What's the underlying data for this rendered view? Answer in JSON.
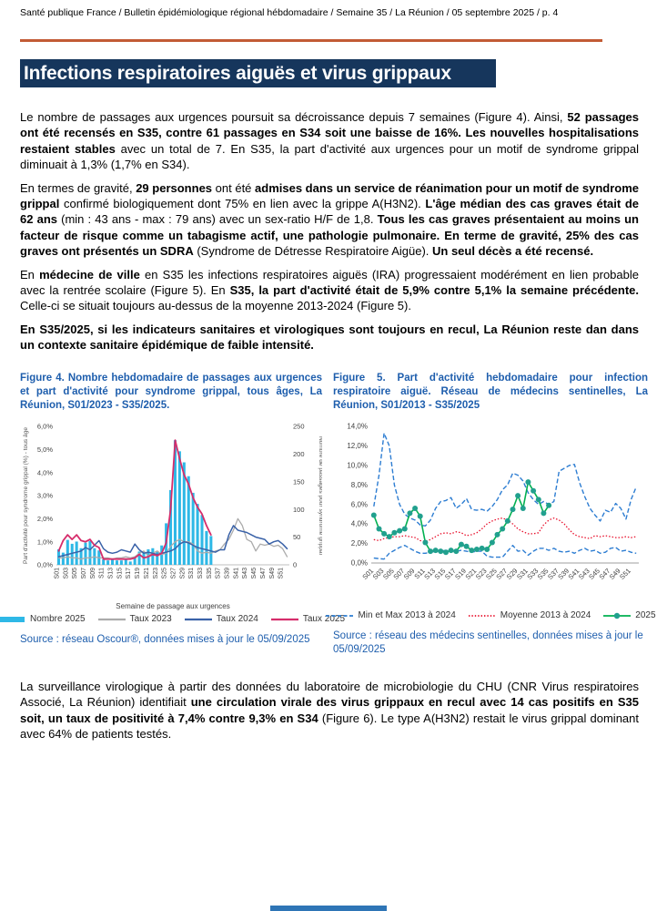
{
  "header": {
    "breadcrumb": "Santé publique France / Bulletin épidémiologique régional hébdomadaire / Semaine 35 / La Réunion / 05 septembre 2025 / p. 4"
  },
  "title": "Infections respiratoires aiguës et virus grippaux",
  "colors": {
    "banner_navy": "#16365C",
    "rule_orange": "#C25B35",
    "caption_blue": "#1E5EAD",
    "footer_bar_blue": "#2E75B6"
  },
  "paragraphs": [
    {
      "segments": [
        {
          "t": "Le nombre de passages aux urgences poursuit sa décroissance depuis 7 semaines (Figure 4). Ainsi, ",
          "b": false
        },
        {
          "t": "52 passages ont été recensés en S35, contre 61 passages en S34 soit une baisse de 16%.  Les nouvelles hospitalisations restaient stables",
          "b": true
        },
        {
          "t": " avec un total de 7. En S35, la part d'activité aux urgences pour un motif de syndrome grippal diminuait à 1,3% (1,7% en S34).",
          "b": false
        }
      ]
    },
    {
      "segments": [
        {
          "t": "En termes de gravité, ",
          "b": false
        },
        {
          "t": "29 personnes",
          "b": true
        },
        {
          "t": " ont été ",
          "b": false
        },
        {
          "t": "admises dans un service de réanimation pour un motif de syndrome grippal",
          "b": true
        },
        {
          "t": " confirmé biologiquement dont 75% en lien avec la grippe A(H3N2). ",
          "b": false
        },
        {
          "t": "L'âge médian des cas graves était de 62 ans",
          "b": true
        },
        {
          "t": " (min :  43 ans - max : 79 ans) avec un sex-ratio H/F de 1,8. ",
          "b": false
        },
        {
          "t": "Tous les cas graves présentaient au moins un facteur de risque comme un tabagisme actif, une pathologie pulmonaire. En terme de gravité, 25% des cas graves ont présentés un SDRA",
          "b": true
        },
        {
          "t": " (Syndrome de Détresse Respiratoire Aigüe). ",
          "b": false
        },
        {
          "t": "Un seul décès a été recensé.",
          "b": true
        }
      ]
    },
    {
      "segments": [
        {
          "t": "En ",
          "b": false
        },
        {
          "t": "médecine de ville",
          "b": true
        },
        {
          "t": " en S35 les infections respiratoires aiguës (IRA) progressaient modérément en lien probable avec la rentrée scolaire (Figure 5). En ",
          "b": false
        },
        {
          "t": "S35, la part d'activité était de 5,9% contre 5,1% la semaine précédente.",
          "b": true
        },
        {
          "t": " Celle-ci se situait toujours au-dessus de la moyenne 2013-2024 (Figure 5).",
          "b": false
        }
      ]
    },
    {
      "segments": [
        {
          "t": "En S35/2025, si les indicateurs sanitaires et virologiques sont toujours en recul, La Réunion reste dan dans un contexte sanitaire épidémique de faible intensité.",
          "b": true
        }
      ]
    }
  ],
  "figure4": {
    "caption": "Figure 4. Nombre hebdomadaire de passages aux urgences et part d'activité pour syndrome grippal, tous âges, La Réunion, S01/2023 - S35/2025.",
    "source": "Source : réseau Oscour®,  données mises à jour le 05/09/2025"
  },
  "figure5": {
    "caption": "Figure 5. Part d'activité hebdomadaire pour infection respiratoire aiguë. Réseau de médecins sentinelles, La Réunion, S01/2013 - S35/2025",
    "source": "Source : réseau des médecins sentinelles, données mises à jour le 05/09/2025"
  },
  "closing": {
    "segments": [
      {
        "t": "La surveillance virologique à partir des données du laboratoire de microbiologie du CHU (CNR Virus respiratoires Associé, La Réunion) identifiait ",
        "b": false
      },
      {
        "t": "une circulation virale des virus grippaux en recul avec 14 cas positifs en S35 soit, un taux de positivité à 7,4% contre 9,3% en S34",
        "b": true
      },
      {
        "t": " (Figure 6). Le type A(H3N2) restait le virus grippal dominant avec 64% de patients testés.",
        "b": false
      }
    ]
  },
  "chart_data": [
    {
      "type": "bar",
      "title": "Nombre hebdomadaire de passages aux urgences et part d'activité pour syndrome grippal, tous âges, La Réunion, S01/2023 - S35/2025",
      "weeks": 52,
      "x_label": "Semaine de passage aux urgences",
      "y_left_label": "Part d'activité pour syndrome grippal (%) - tous âge",
      "y_right_label": "Nombre de passages pour syndrome grippal",
      "y_left_range": [
        0,
        6
      ],
      "y_right_range": [
        0,
        250
      ],
      "y_left_ticks": [
        "0,0%",
        "1,0%",
        "2,0%",
        "3,0%",
        "4,0%",
        "5,0%",
        "6,0%"
      ],
      "y_right_ticks": [
        "0",
        "50",
        "100",
        "150",
        "200",
        "250"
      ],
      "x_ticks": [
        "S01",
        "S03",
        "S05",
        "S07",
        "S09",
        "S11",
        "S13",
        "S15",
        "S17",
        "S19",
        "S21",
        "S23",
        "S25",
        "S27",
        "S29",
        "S31",
        "S33",
        "S35",
        "S37",
        "S39",
        "S41",
        "S43",
        "S45",
        "S47",
        "S49",
        "S51"
      ],
      "legend": [
        {
          "label": "Nombre 2025",
          "color": "#2EB8E6",
          "type": "bar"
        },
        {
          "label": "Taux 2023",
          "color": "#ABABAB",
          "type": "line"
        },
        {
          "label": "Taux 2024",
          "color": "#3A62A8",
          "type": "line"
        },
        {
          "label": "Taux 2025",
          "color": "#D62D6B",
          "type": "line"
        }
      ],
      "series": [
        {
          "name": "Nombre 2025",
          "axis": "right",
          "kind": "bar",
          "color": "#2EB8E6",
          "values": [
            28,
            22,
            45,
            38,
            42,
            30,
            40,
            43,
            30,
            26,
            10,
            8,
            10,
            8,
            8,
            10,
            6,
            12,
            24,
            24,
            28,
            30,
            24,
            35,
            75,
            135,
            225,
            205,
            185,
            160,
            130,
            110,
            90,
            61,
            52
          ]
        },
        {
          "name": "Taux 2023",
          "axis": "left",
          "kind": "line",
          "color": "#ABABAB",
          "width": 1.3,
          "values": [
            0.3,
            0.3,
            0.35,
            0.3,
            0.3,
            0.25,
            0.3,
            0.3,
            0.35,
            0.3,
            0.3,
            0.3,
            0.25,
            0.3,
            0.3,
            0.35,
            0.3,
            0.35,
            0.5,
            0.6,
            0.4,
            0.5,
            0.6,
            0.45,
            0.5,
            0.8,
            1.0,
            1.1,
            1.0,
            1.0,
            0.9,
            0.6,
            0.5,
            0.55,
            0.5,
            0.6,
            0.65,
            0.9,
            1.1,
            1.5,
            2.0,
            1.7,
            1.1,
            1.0,
            0.6,
            0.9,
            0.85,
            0.9,
            0.8,
            0.85,
            0.7,
            0.35
          ]
        },
        {
          "name": "Taux 2024",
          "axis": "left",
          "kind": "line",
          "color": "#3A62A8",
          "width": 1.5,
          "values": [
            0.35,
            0.4,
            0.45,
            0.5,
            0.55,
            0.6,
            0.75,
            0.65,
            0.85,
            1.05,
            0.7,
            0.55,
            0.5,
            0.55,
            0.65,
            0.6,
            0.55,
            0.9,
            0.65,
            0.5,
            0.55,
            0.5,
            0.45,
            0.5,
            0.55,
            0.6,
            0.7,
            0.9,
            1.0,
            0.95,
            0.85,
            0.75,
            0.7,
            0.65,
            0.6,
            0.55,
            0.65,
            0.65,
            1.3,
            1.7,
            1.5,
            1.45,
            1.4,
            1.3,
            1.2,
            1.15,
            1.1,
            0.9,
            1.0,
            1.05,
            0.9,
            0.7
          ]
        },
        {
          "name": "Taux 2025",
          "axis": "left",
          "kind": "line",
          "color": "#D62D6B",
          "width": 1.8,
          "values": [
            0.6,
            1.05,
            1.3,
            1.1,
            1.3,
            1.05,
            1.0,
            1.1,
            0.85,
            0.75,
            0.25,
            0.25,
            0.25,
            0.25,
            0.25,
            0.25,
            0.25,
            0.3,
            0.45,
            0.3,
            0.35,
            0.45,
            0.4,
            0.5,
            0.95,
            2.4,
            5.4,
            4.6,
            3.9,
            3.5,
            2.9,
            2.5,
            2.2,
            1.7,
            1.3
          ]
        }
      ]
    },
    {
      "type": "line",
      "title": "Part d'activité hebdomadaire pour infection respiratoire aiguë. Réseau de médecins sentinelles, La Réunion, S01/2013 - S35/2025",
      "weeks": 52,
      "y_range": [
        0,
        14
      ],
      "y_ticks": [
        "0,0%",
        "2,0%",
        "4,0%",
        "6,0%",
        "8,0%",
        "10,0%",
        "12,0%",
        "14,0%"
      ],
      "x_ticks": [
        "S01",
        "S03",
        "S05",
        "S07",
        "S09",
        "S11",
        "S13",
        "S15",
        "S17",
        "S19",
        "S21",
        "S23",
        "S25",
        "S27",
        "S29",
        "S31",
        "S33",
        "S35",
        "S37",
        "S39",
        "S41",
        "S43",
        "S45",
        "S47",
        "S49",
        "S51"
      ],
      "legend": [
        {
          "label": "Min et Max 2013 à 2024",
          "color": "#2D7DD2",
          "type": "dashed"
        },
        {
          "label": "Moyenne 2013 à 2024",
          "color": "#E8112D",
          "type": "dotted"
        },
        {
          "label": "2025",
          "color": "#00B050",
          "marker": "#21A08E",
          "type": "line-marker"
        }
      ],
      "series": [
        {
          "name": "Max 2013 à 2024",
          "kind": "dashed",
          "color": "#2D7DD2",
          "width": 1.4,
          "values": [
            5.8,
            9.0,
            13.3,
            12.0,
            8.0,
            6.0,
            5.0,
            4.6,
            4.4,
            3.9,
            3.8,
            4.4,
            5.6,
            6.3,
            6.4,
            6.7,
            5.6,
            6.0,
            6.6,
            5.5,
            5.4,
            5.5,
            5.3,
            5.8,
            6.5,
            7.5,
            8.0,
            9.2,
            9.0,
            8.4,
            7.2,
            6.5,
            6.0,
            6.3,
            6.0,
            6.3,
            9.4,
            9.7,
            10.0,
            10.1,
            8.2,
            6.8,
            5.6,
            4.9,
            4.3,
            5.4,
            5.2,
            6.1,
            5.6,
            4.5,
            6.5,
            7.8
          ]
        },
        {
          "name": "Min 2013 à 2024",
          "kind": "dashed",
          "color": "#2D7DD2",
          "width": 1.4,
          "values": [
            0.5,
            0.45,
            0.4,
            1.0,
            1.3,
            1.6,
            1.8,
            1.5,
            1.2,
            1.0,
            1.0,
            1.1,
            1.2,
            1.2,
            1.3,
            1.2,
            1.2,
            1.3,
            1.2,
            1.1,
            1.2,
            1.2,
            0.7,
            0.6,
            0.6,
            0.6,
            1.2,
            1.8,
            1.2,
            1.3,
            0.8,
            1.2,
            1.5,
            1.5,
            1.3,
            1.5,
            1.2,
            1.1,
            1.2,
            1.0,
            1.3,
            1.5,
            1.2,
            1.3,
            1.0,
            1.1,
            1.5,
            1.6,
            1.2,
            1.3,
            1.1,
            1.0
          ]
        },
        {
          "name": "Moyenne 2013 à 2024",
          "kind": "dotted",
          "color": "#E8112D",
          "width": 1.3,
          "values": [
            2.4,
            2.3,
            2.5,
            2.6,
            2.7,
            2.7,
            2.8,
            2.7,
            2.6,
            2.3,
            2.2,
            2.4,
            2.7,
            3.0,
            3.1,
            3.0,
            3.2,
            3.1,
            2.8,
            2.9,
            3.1,
            3.5,
            4.0,
            4.3,
            4.5,
            4.6,
            4.4,
            4.0,
            3.5,
            3.2,
            3.0,
            3.0,
            3.1,
            3.9,
            4.4,
            4.6,
            4.4,
            4.0,
            3.4,
            2.9,
            2.7,
            2.6,
            2.5,
            2.8,
            2.7,
            2.8,
            2.7,
            2.6,
            2.6,
            2.7,
            2.6,
            2.7
          ]
        },
        {
          "name": "2025",
          "kind": "line-marker",
          "color": "#00B050",
          "marker": "#21A08E",
          "width": 1.6,
          "values": [
            4.9,
            3.5,
            3.0,
            2.7,
            3.1,
            3.3,
            3.5,
            5.1,
            5.6,
            4.8,
            2.1,
            1.2,
            1.3,
            1.2,
            1.1,
            1.3,
            1.2,
            1.9,
            1.7,
            1.3,
            1.4,
            1.5,
            1.4,
            2.1,
            2.9,
            3.5,
            4.3,
            5.5,
            6.9,
            5.6,
            8.3,
            7.4,
            6.5,
            5.1,
            5.9
          ]
        }
      ]
    }
  ]
}
